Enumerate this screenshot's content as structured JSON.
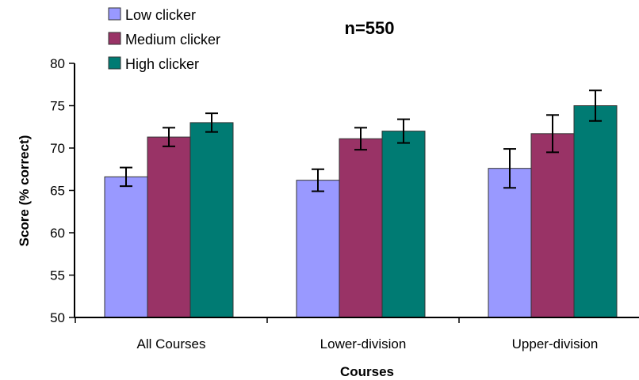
{
  "chart_data": {
    "type": "bar",
    "annotation": "n=550",
    "xlabel": "Courses",
    "ylabel": "Score (% correct)",
    "ylim": [
      50,
      80
    ],
    "yticks": [
      "50",
      "55",
      "60",
      "65",
      "70",
      "75",
      "80"
    ],
    "categories": [
      "All Courses",
      "Lower-division",
      "Upper-division"
    ],
    "legend_position": "top-left",
    "series": [
      {
        "name": "Low clicker",
        "color": "#9999ff",
        "values": [
          66.6,
          66.2,
          67.6
        ],
        "error": [
          1.1,
          1.3,
          2.3
        ]
      },
      {
        "name": "Medium clicker",
        "color": "#993366",
        "values": [
          71.3,
          71.1,
          71.7
        ],
        "error": [
          1.1,
          1.3,
          2.2
        ]
      },
      {
        "name": "High clicker",
        "color": "#007b73",
        "values": [
          73.0,
          72.0,
          75.0
        ],
        "error": [
          1.1,
          1.4,
          1.8
        ]
      }
    ]
  }
}
